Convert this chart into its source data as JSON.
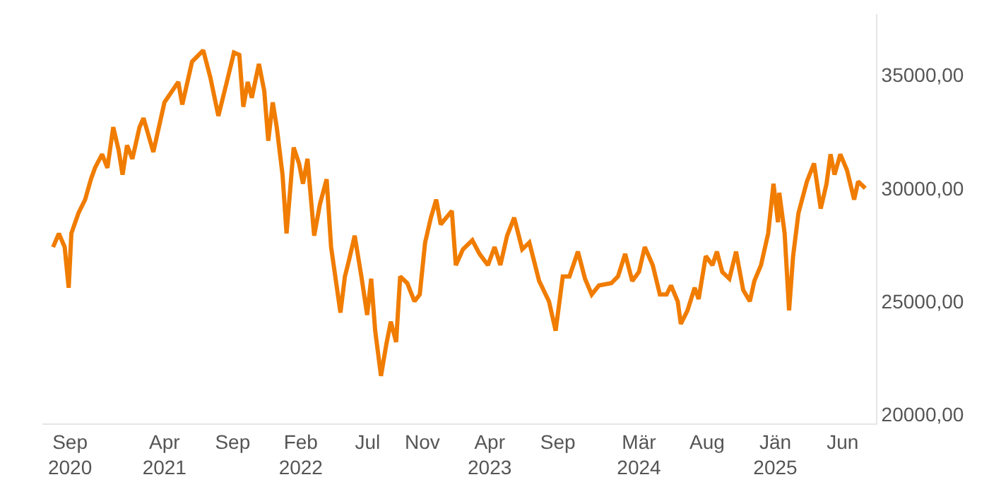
{
  "chart_data": {
    "type": "line",
    "x": [
      "2020-07-25",
      "2020-08-07",
      "2020-08-20",
      "2020-08-29",
      "2020-09-04",
      "2020-09-20",
      "2020-10-05",
      "2020-10-18",
      "2020-10-27",
      "2020-11-12",
      "2020-11-24",
      "2020-12-07",
      "2020-12-19",
      "2020-12-28",
      "2021-01-07",
      "2021-01-19",
      "2021-02-04",
      "2021-02-13",
      "2021-03-07",
      "2021-04-01",
      "2021-05-02",
      "2021-05-11",
      "2021-06-02",
      "2021-06-27",
      "2021-07-13",
      "2021-07-31",
      "2021-08-19",
      "2021-09-04",
      "2021-09-16",
      "2021-09-25",
      "2021-10-05",
      "2021-10-14",
      "2021-10-30",
      "2021-11-11",
      "2021-11-20",
      "2021-11-30",
      "2021-12-09",
      "2021-12-22",
      "2021-12-31",
      "2022-01-16",
      "2022-01-28",
      "2022-02-06",
      "2022-02-16",
      "2022-03-03",
      "2022-03-16",
      "2022-03-31",
      "2022-04-10",
      "2022-05-01",
      "2022-05-11",
      "2022-05-20",
      "2022-06-02",
      "2022-06-17",
      "2022-06-30",
      "2022-07-09",
      "2022-07-18",
      "2022-07-31",
      "2022-08-12",
      "2022-08-22",
      "2022-09-03",
      "2022-09-12",
      "2022-09-28",
      "2022-10-14",
      "2022-10-26",
      "2022-11-07",
      "2022-11-20",
      "2022-12-02",
      "2022-12-12",
      "2023-01-06",
      "2023-01-15",
      "2023-01-31",
      "2023-02-21",
      "2023-03-09",
      "2023-03-28",
      "2023-04-12",
      "2023-04-25",
      "2023-05-10",
      "2023-05-26",
      "2023-06-13",
      "2023-06-29",
      "2023-07-21",
      "2023-08-12",
      "2023-08-27",
      "2023-09-12",
      "2023-09-27",
      "2023-10-16",
      "2023-11-01",
      "2023-11-16",
      "2023-12-02",
      "2023-12-30",
      "2024-01-14",
      "2024-01-30",
      "2024-02-15",
      "2024-03-01",
      "2024-03-14",
      "2024-04-01",
      "2024-04-17",
      "2024-05-02",
      "2024-05-12",
      "2024-05-27",
      "2024-06-03",
      "2024-06-18",
      "2024-07-04",
      "2024-07-13",
      "2024-07-29",
      "2024-08-13",
      "2024-08-23",
      "2024-09-04",
      "2024-09-20",
      "2024-10-05",
      "2024-10-21",
      "2024-11-05",
      "2024-11-15",
      "2024-11-30",
      "2024-12-16",
      "2024-12-28",
      "2025-01-07",
      "2025-01-10",
      "2025-01-22",
      "2025-02-01",
      "2025-02-10",
      "2025-02-22",
      "2025-03-13",
      "2025-03-29",
      "2025-04-13",
      "2025-04-26",
      "2025-05-05",
      "2025-05-14",
      "2025-05-27",
      "2025-06-11",
      "2025-06-27",
      "2025-07-06",
      "2025-07-22"
    ],
    "series": [
      {
        "color": "#f07c00",
        "values": [
          27400,
          28000,
          27400,
          25600,
          28000,
          28900,
          29500,
          30400,
          30900,
          31500,
          30900,
          32700,
          31700,
          30600,
          31900,
          31300,
          32700,
          33100,
          31600,
          33800,
          34700,
          33700,
          35600,
          36100,
          34900,
          33200,
          34700,
          36000,
          35900,
          33600,
          34700,
          34000,
          35500,
          34300,
          32100,
          33800,
          32700,
          30600,
          28000,
          31800,
          31100,
          30200,
          31300,
          27900,
          29300,
          30400,
          27400,
          24500,
          26100,
          26800,
          27900,
          26100,
          24400,
          26000,
          23700,
          21700,
          23100,
          24100,
          23200,
          26100,
          25800,
          25000,
          25300,
          27600,
          28700,
          29500,
          28400,
          29000,
          26600,
          27300,
          27700,
          27100,
          26600,
          27400,
          26600,
          27900,
          28700,
          27300,
          27600,
          25900,
          25000,
          23700,
          26100,
          26100,
          27200,
          26000,
          25300,
          25700,
          25800,
          26100,
          27100,
          25900,
          26300,
          27400,
          26600,
          25300,
          25300,
          25700,
          25000,
          24000,
          24600,
          25600,
          25100,
          27000,
          26600,
          27200,
          26300,
          26000,
          27200,
          25500,
          25000,
          25900,
          26600,
          28000,
          30200,
          28500,
          29800,
          28000,
          24600,
          27000,
          28900,
          30300,
          31100,
          29100,
          30200,
          31500,
          30600,
          31500,
          30800,
          29500,
          30300,
          30000
        ]
      }
    ],
    "xticks": [
      {
        "value": "2020-09-01",
        "label": "Sep\n2020"
      },
      {
        "value": "2021-04-01",
        "label": "Apr\n2021"
      },
      {
        "value": "2021-09-01",
        "label": "Sep"
      },
      {
        "value": "2022-02-01",
        "label": "Feb\n2022"
      },
      {
        "value": "2022-07-01",
        "label": "Jul"
      },
      {
        "value": "2022-11-01",
        "label": "Nov"
      },
      {
        "value": "2023-04-01",
        "label": "Apr\n2023"
      },
      {
        "value": "2023-09-01",
        "label": "Sep"
      },
      {
        "value": "2024-03-01",
        "label": "Mär\n2024"
      },
      {
        "value": "2024-08-01",
        "label": "Aug"
      },
      {
        "value": "2025-01-01",
        "label": "Jän\n2025"
      },
      {
        "value": "2025-06-01",
        "label": "Jun"
      }
    ],
    "yticks": [
      {
        "value": 20000,
        "label": "20000,00"
      },
      {
        "value": 25000,
        "label": "25000,00"
      },
      {
        "value": 30000,
        "label": "30000,00"
      },
      {
        "value": 35000,
        "label": "35000,00"
      }
    ],
    "xlim": [
      "2020-07-01",
      "2025-08-15"
    ],
    "ylim": [
      19600,
      37700
    ],
    "marker": "none",
    "line_style": "solid"
  }
}
